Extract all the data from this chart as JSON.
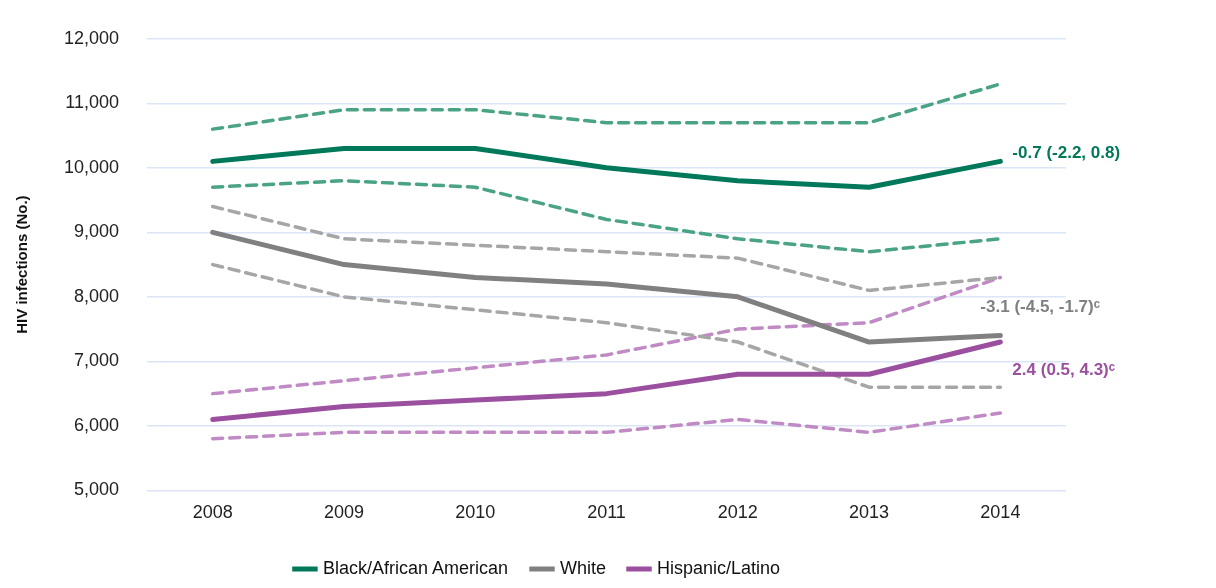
{
  "chart_data": {
    "type": "line",
    "ylabel": "HIV infections (No.)",
    "categories": [
      "2008",
      "2009",
      "2010",
      "2011",
      "2012",
      "2013",
      "2014"
    ],
    "series": [
      {
        "color": "#4aa384",
        "line_style": "dashed",
        "values": [
          10600,
          10900,
          10900,
          10700,
          10700,
          10700,
          11300
        ]
      },
      {
        "color": "#4aa384",
        "line_style": "dashed",
        "values": [
          9700,
          9800,
          9700,
          9200,
          8900,
          8700,
          8900
        ]
      },
      {
        "color": "#a6a6a6",
        "line_style": "dashed",
        "values": [
          9400,
          8900,
          8800,
          8700,
          8600,
          8100,
          8300
        ]
      },
      {
        "color": "#a6a6a6",
        "line_style": "dashed",
        "values": [
          8500,
          8000,
          7800,
          7600,
          7300,
          6600,
          6600
        ]
      },
      {
        "color": "#c08ac4",
        "line_style": "dashed",
        "values": [
          6500,
          6700,
          6900,
          7100,
          7500,
          7600,
          8300
        ]
      },
      {
        "color": "#c08ac4",
        "line_style": "dashed",
        "values": [
          5800,
          5900,
          5900,
          5900,
          6100,
          5900,
          6200
        ]
      },
      {
        "name": "Black/African American",
        "color": "#00785a",
        "values": [
          10100,
          10300,
          10300,
          10000,
          9800,
          9700,
          10100
        ]
      },
      {
        "name": "White",
        "color": "#808080",
        "values": [
          9000,
          8500,
          8300,
          8200,
          8000,
          7300,
          7400
        ]
      },
      {
        "name": "Hispanic/Latino",
        "color": "#9b4f9f",
        "values": [
          6100,
          6300,
          6400,
          6500,
          6800,
          6800,
          7300
        ]
      }
    ],
    "ylim": [
      5000,
      12000
    ],
    "yticks": [
      {
        "value": 5000,
        "label": "5,000"
      },
      {
        "value": 6000,
        "label": "6,000"
      },
      {
        "value": 7000,
        "label": "7,000"
      },
      {
        "value": 8000,
        "label": "8,000"
      },
      {
        "value": 9000,
        "label": "9,000"
      },
      {
        "value": 10000,
        "label": "10,000"
      },
      {
        "value": 11000,
        "label": "11,000"
      },
      {
        "value": 12000,
        "label": "12,000"
      }
    ],
    "grid": "y",
    "legend": "bottom",
    "marker": "none",
    "line_style": "solid",
    "annotations": [
      {
        "text": "-0.7 (-2.2, 0.8)",
        "x": "2014",
        "y": 10100
      },
      {
        "text": "-3.1 (-4.5, -1.7)ᶜ",
        "x": "2014",
        "y": 7400
      },
      {
        "text": "2.4 (0.5, 4.3)ᶜ",
        "x": "2014",
        "y": 7300
      }
    ]
  }
}
